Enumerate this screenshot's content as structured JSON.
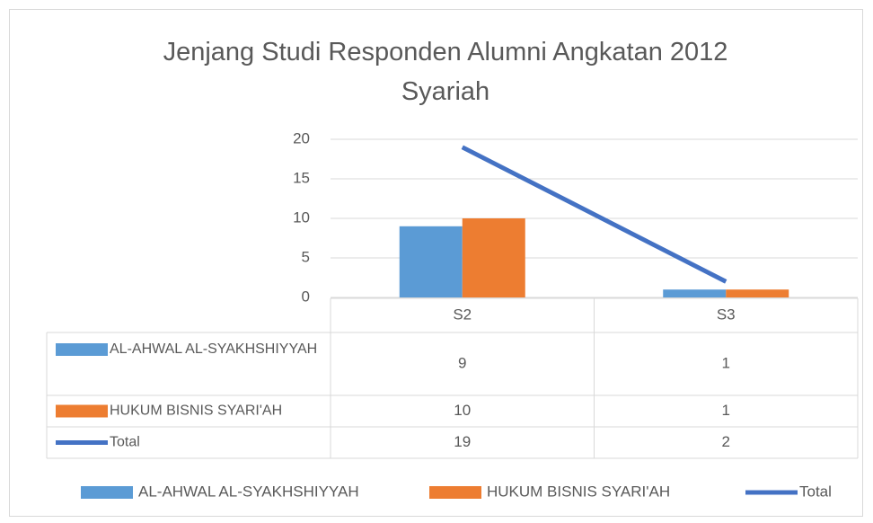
{
  "chart_data": {
    "type": "bar",
    "title": "Jenjang Studi Responden  Alumni Angkatan 2012 Syariah",
    "categories": [
      "S2",
      "S3"
    ],
    "series": [
      {
        "name": "AL-AHWAL AL-SYAKHSHIYYAH",
        "color": "#5b9bd5",
        "type": "bar",
        "values": [
          9,
          1
        ]
      },
      {
        "name": "HUKUM BISNIS SYARI'AH",
        "color": "#ed7d31",
        "type": "bar",
        "values": [
          10,
          1
        ]
      },
      {
        "name": "Total",
        "color": "#4472c4",
        "type": "line",
        "values": [
          19,
          2
        ]
      }
    ],
    "ylim": [
      0,
      20
    ],
    "yticks": [
      0,
      5,
      10,
      15,
      20
    ],
    "grid": true,
    "legend": "bottom",
    "data_table": true
  }
}
